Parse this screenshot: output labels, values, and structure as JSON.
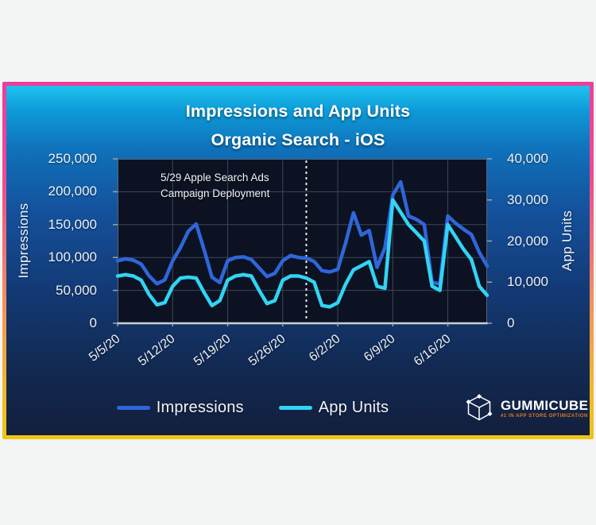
{
  "title": {
    "line1": "Impressions and App Units",
    "line2": "Organic Search - iOS"
  },
  "branding": {
    "name": "GUMMICUBE",
    "tagline": "#1 IN APP STORE OPTIMIZATION"
  },
  "colors": {
    "impressions_line": "#2f66db",
    "app_units_line": "#31d4f3",
    "plot_background": "#0c1222",
    "gridline": "#3d4757",
    "dashed_line": "#e6e9ee",
    "border_gradient_top": "#ee3d9d",
    "border_gradient_bottom": "#efc514",
    "tagline_orange": "#e07b1a"
  },
  "chart_data": {
    "type": "line",
    "title": "Impressions and App Units — Organic Search - iOS",
    "grid": true,
    "legend_position": "bottom",
    "x": [
      "5/5/20",
      "5/6/20",
      "5/7/20",
      "5/8/20",
      "5/9/20",
      "5/10/20",
      "5/11/20",
      "5/12/20",
      "5/13/20",
      "5/14/20",
      "5/15/20",
      "5/16/20",
      "5/17/20",
      "5/18/20",
      "5/19/20",
      "5/20/20",
      "5/21/20",
      "5/22/20",
      "5/23/20",
      "5/24/20",
      "5/25/20",
      "5/26/20",
      "5/27/20",
      "5/28/20",
      "5/29/20",
      "5/30/20",
      "5/31/20",
      "6/1/20",
      "6/2/20",
      "6/3/20",
      "6/4/20",
      "6/5/20",
      "6/6/20",
      "6/7/20",
      "6/8/20",
      "6/9/20",
      "6/10/20",
      "6/11/20",
      "6/12/20",
      "6/13/20",
      "6/14/20",
      "6/15/20",
      "6/16/20",
      "6/17/20",
      "6/18/20",
      "6/19/20",
      "6/20/20",
      "6/21/20"
    ],
    "x_ticks": [
      "5/5/20",
      "5/12/20",
      "5/19/20",
      "5/26/20",
      "6/2/20",
      "6/9/20",
      "6/16/20"
    ],
    "series": [
      {
        "name": "Impressions",
        "axis": "left",
        "color": "#2f66db",
        "values": [
          95000,
          98000,
          96000,
          90000,
          72000,
          60000,
          66000,
          95000,
          115000,
          140000,
          151000,
          112000,
          70000,
          62000,
          95000,
          100000,
          101000,
          97000,
          84000,
          71000,
          76000,
          95000,
          103000,
          100000,
          99000,
          94000,
          80000,
          78000,
          82000,
          122000,
          168000,
          134000,
          141000,
          85000,
          115000,
          195000,
          215000,
          163000,
          158000,
          150000,
          62000,
          60000,
          163000,
          152000,
          143000,
          135000,
          108000,
          87000
        ]
      },
      {
        "name": "App Units",
        "axis": "right",
        "color": "#31d4f3",
        "values": [
          11500,
          11800,
          11500,
          10500,
          7000,
          4500,
          5000,
          9000,
          11000,
          11200,
          11000,
          7500,
          4300,
          5500,
          10500,
          11500,
          11800,
          11500,
          8000,
          4800,
          5500,
          10500,
          11500,
          11500,
          11000,
          10000,
          4300,
          4000,
          5000,
          9500,
          13000,
          14000,
          15000,
          9000,
          8500,
          30000,
          27000,
          24000,
          22000,
          20000,
          9000,
          8000,
          24000,
          21000,
          18000,
          15500,
          9000,
          6800
        ]
      }
    ],
    "left_axis": {
      "title": "Impressions",
      "max": 250000,
      "ticks": [
        "250,000",
        "200,000",
        "150,000",
        "100,000",
        "50,000",
        "0"
      ],
      "tick_values": [
        250000,
        200000,
        150000,
        100000,
        50000,
        0
      ]
    },
    "right_axis": {
      "title": "App Units",
      "max": 40000,
      "ticks": [
        "40,000",
        "30,000",
        "20,000",
        "10,000",
        "0"
      ],
      "tick_values": [
        40000,
        30000,
        20000,
        10000,
        0
      ]
    },
    "annotation": {
      "line1": "5/29 Apple Search Ads",
      "line2": "Campaign Deployment",
      "date": "5/29/20"
    },
    "legend": [
      "Impressions",
      "App Units"
    ]
  }
}
